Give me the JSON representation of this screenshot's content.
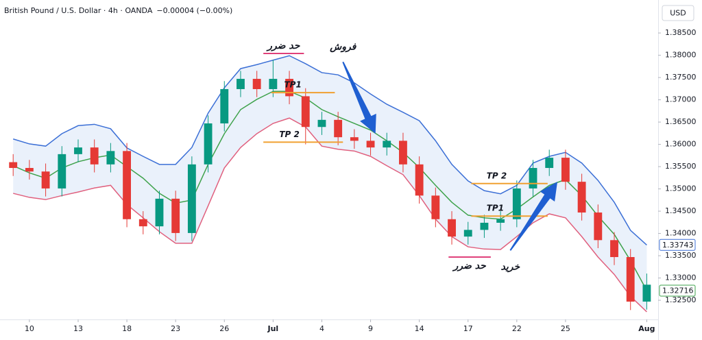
{
  "chart_data": {
    "type": "candlestick",
    "title": "British Pound / U.S. Dollar · 4h · OANDA",
    "change": "−0.00004 (−0.00%)",
    "currency": "USD",
    "up_color": "#089981",
    "down_color": "#e53935",
    "x": [
      0,
      1,
      2,
      3,
      4,
      5,
      6,
      7,
      8,
      9,
      10,
      11,
      12,
      13,
      14,
      15,
      16,
      17,
      18,
      19,
      20,
      21,
      22,
      23,
      24,
      25,
      26,
      27,
      28,
      29,
      30,
      31,
      32,
      33,
      34,
      35,
      36,
      37,
      38,
      39
    ],
    "open": [
      1.356,
      1.3547,
      1.3539,
      1.3501,
      1.3578,
      1.3593,
      1.3555,
      1.3585,
      1.3432,
      1.3416,
      1.3478,
      1.3401,
      1.3555,
      1.3647,
      1.3724,
      1.3747,
      1.3724,
      1.3747,
      1.3708,
      1.3639,
      1.3655,
      1.3616,
      1.3608,
      1.3593,
      1.3608,
      1.3555,
      1.3485,
      1.3432,
      1.3393,
      1.3408,
      1.3424,
      1.3432,
      1.3501,
      1.3547,
      1.357,
      1.3516,
      1.3447,
      1.3385,
      1.3347,
      1.3247
    ],
    "high": [
      1.3578,
      1.3565,
      1.3557,
      1.3596,
      1.3611,
      1.3611,
      1.3603,
      1.3603,
      1.345,
      1.3496,
      1.3496,
      1.3573,
      1.3665,
      1.3742,
      1.3765,
      1.3765,
      1.379,
      1.3765,
      1.3726,
      1.3673,
      1.3673,
      1.3634,
      1.3626,
      1.3626,
      1.3626,
      1.3573,
      1.3503,
      1.345,
      1.3426,
      1.3442,
      1.345,
      1.3519,
      1.3565,
      1.3588,
      1.3588,
      1.3534,
      1.3465,
      1.3403,
      1.3365,
      1.331
    ],
    "low": [
      1.3529,
      1.3521,
      1.3483,
      1.3483,
      1.356,
      1.3537,
      1.3537,
      1.3414,
      1.3398,
      1.3398,
      1.3383,
      1.3383,
      1.3537,
      1.3629,
      1.3706,
      1.3706,
      1.3706,
      1.369,
      1.36,
      1.3621,
      1.3598,
      1.359,
      1.3575,
      1.3575,
      1.3537,
      1.3467,
      1.3414,
      1.3375,
      1.3375,
      1.339,
      1.3406,
      1.3414,
      1.3483,
      1.3529,
      1.3498,
      1.3429,
      1.3367,
      1.3329,
      1.3228,
      1.3229
    ],
    "close": [
      1.3547,
      1.3539,
      1.3501,
      1.3578,
      1.3593,
      1.3555,
      1.3585,
      1.3432,
      1.3416,
      1.3478,
      1.3401,
      1.3555,
      1.3647,
      1.3724,
      1.3747,
      1.3724,
      1.3747,
      1.3708,
      1.3639,
      1.3655,
      1.3616,
      1.3608,
      1.3593,
      1.3608,
      1.3555,
      1.3485,
      1.3432,
      1.3393,
      1.3408,
      1.3424,
      1.3432,
      1.3501,
      1.3547,
      1.357,
      1.3516,
      1.3447,
      1.3385,
      1.3347,
      1.3247,
      1.3285
    ],
    "bands": [
      {
        "color": "#3b6fd6",
        "values": [
          1.3612,
          1.3601,
          1.3596,
          1.3624,
          1.3642,
          1.3645,
          1.3635,
          1.3592,
          1.3573,
          1.3555,
          1.3555,
          1.3593,
          1.367,
          1.3727,
          1.377,
          1.3779,
          1.3789,
          1.3799,
          1.3781,
          1.3761,
          1.3756,
          1.3738,
          1.3713,
          1.369,
          1.3672,
          1.3653,
          1.3608,
          1.3555,
          1.3518,
          1.3496,
          1.3489,
          1.3508,
          1.3558,
          1.3573,
          1.3582,
          1.3558,
          1.3519,
          1.347,
          1.3407,
          1.3374
        ]
      },
      {
        "color": "#3ea24b",
        "values": [
          1.3552,
          1.3536,
          1.3524,
          1.3547,
          1.3561,
          1.357,
          1.3576,
          1.355,
          1.3524,
          1.349,
          1.3468,
          1.3475,
          1.3555,
          1.3624,
          1.3678,
          1.3701,
          1.3719,
          1.3719,
          1.3704,
          1.3678,
          1.3662,
          1.3647,
          1.3632,
          1.3608,
          1.3582,
          1.3548,
          1.3508,
          1.347,
          1.3441,
          1.3435,
          1.3432,
          1.3455,
          1.3482,
          1.3508,
          1.3521,
          1.3485,
          1.3439,
          1.3398,
          1.3339,
          1.3272
        ]
      },
      {
        "color": "#e0607e",
        "values": [
          1.349,
          1.3481,
          1.3476,
          1.3485,
          1.3493,
          1.3502,
          1.3508,
          1.3465,
          1.3435,
          1.3404,
          1.3378,
          1.3378,
          1.3462,
          1.3547,
          1.3593,
          1.3624,
          1.3647,
          1.3659,
          1.3639,
          1.3596,
          1.3589,
          1.3585,
          1.3573,
          1.3552,
          1.3532,
          1.3485,
          1.3432,
          1.3393,
          1.337,
          1.3365,
          1.3364,
          1.3393,
          1.3424,
          1.3444,
          1.3435,
          1.3393,
          1.3347,
          1.3308,
          1.3259,
          1.3224
        ]
      }
    ],
    "band_fill": "#eaf1fb",
    "xlim": [
      -0.81,
      39.7
    ],
    "ylim": [
      1.3207,
      1.3924
    ],
    "xticks": [
      {
        "value": 1,
        "label": "10"
      },
      {
        "value": 4,
        "label": "13"
      },
      {
        "value": 7,
        "label": "18"
      },
      {
        "value": 10,
        "label": "23"
      },
      {
        "value": 13,
        "label": "26"
      },
      {
        "value": 16,
        "label": "Jul"
      },
      {
        "value": 19,
        "label": "4"
      },
      {
        "value": 22,
        "label": "9"
      },
      {
        "value": 25,
        "label": "14"
      },
      {
        "value": 28,
        "label": "17"
      },
      {
        "value": 31,
        "label": "22"
      },
      {
        "value": 34,
        "label": "25"
      },
      {
        "value": 39,
        "label": "Aug"
      }
    ],
    "yticks": [
      {
        "value": 1.325,
        "label": "1.32500"
      },
      {
        "value": 1.33,
        "label": "1.33000"
      },
      {
        "value": 1.335,
        "label": "1.33500"
      },
      {
        "value": 1.34,
        "label": "1.34000"
      },
      {
        "value": 1.345,
        "label": "1.34500"
      },
      {
        "value": 1.35,
        "label": "1.35000"
      },
      {
        "value": 1.355,
        "label": "1.35500"
      },
      {
        "value": 1.36,
        "label": "1.36000"
      },
      {
        "value": 1.365,
        "label": "1.36500"
      },
      {
        "value": 1.37,
        "label": "1.37000"
      },
      {
        "value": 1.375,
        "label": "1.37500"
      },
      {
        "value": 1.38,
        "label": "1.38000"
      },
      {
        "value": 1.385,
        "label": "1.38500"
      }
    ],
    "price_tags": [
      {
        "value": 1.33743,
        "color": "#3b6fd6"
      },
      {
        "value": 1.32716,
        "color": "#3ea24b"
      }
    ],
    "levels": [
      {
        "text": "حد ضرر",
        "y": 1.3804,
        "x": [
          15.4,
          17.9
        ],
        "color": "#e0407a",
        "label_position": "above"
      },
      {
        "text": "TP1",
        "y": 1.3716,
        "x": [
          15.9,
          19.8
        ],
        "color": "#f0a030",
        "label_position": "above"
      },
      {
        "text": "TP 2",
        "y": 1.3605,
        "x": [
          15.4,
          20.3
        ],
        "color": "#f0a030",
        "label_position": "above"
      },
      {
        "text": "TP 2",
        "y": 1.3512,
        "x": [
          28.2,
          32.9
        ],
        "color": "#f0a030",
        "label_position": "above"
      },
      {
        "text": "TP1",
        "y": 1.3439,
        "x": [
          28.2,
          32.9
        ],
        "color": "#f0a030",
        "label_position": "above"
      },
      {
        "text": "حد ضرر",
        "y": 1.3347,
        "x": [
          26.8,
          29.4
        ],
        "color": "#e0407a",
        "label_position": "below"
      }
    ],
    "arrows": [
      {
        "text": "فروش",
        "from": [
          20.3,
          1.3785
        ],
        "to": [
          22.3,
          1.3624
        ],
        "color": "#1f5fd1",
        "label_position": "above"
      },
      {
        "text": "خرید",
        "from": [
          30.6,
          1.3362
        ],
        "to": [
          33.5,
          1.3516
        ],
        "color": "#1f5fd1",
        "label_position": "below"
      }
    ]
  }
}
